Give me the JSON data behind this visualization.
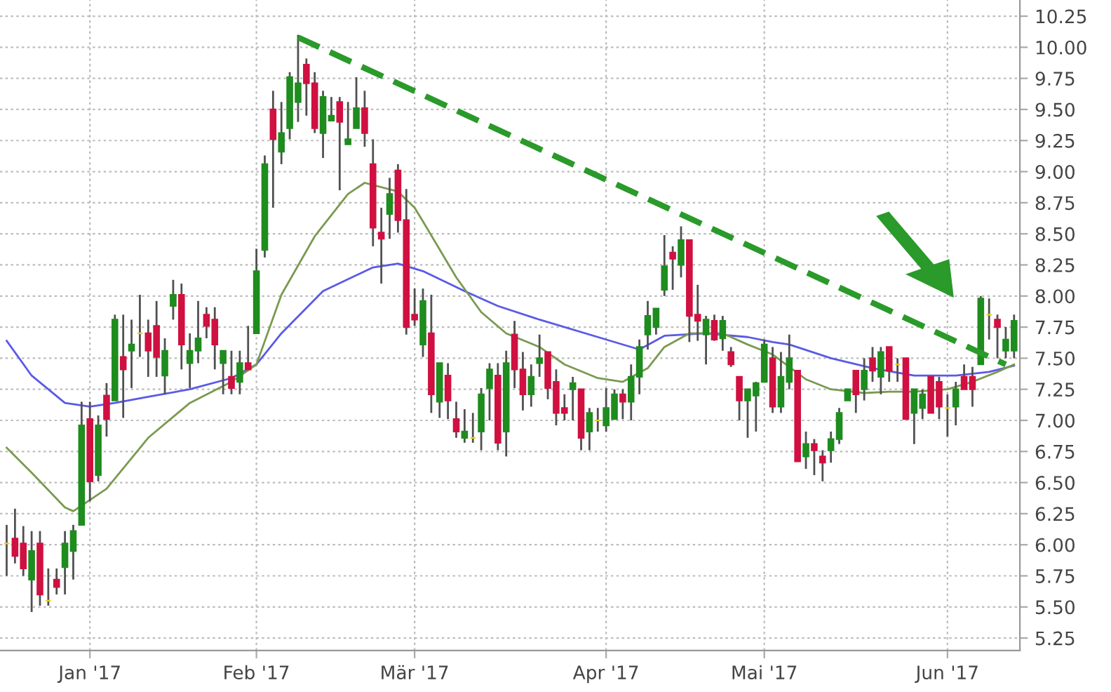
{
  "chart_data": {
    "type": "candlestick",
    "categories": [
      null,
      null,
      null,
      null,
      null,
      null,
      null,
      null,
      null,
      null,
      "Jan '17",
      null,
      null,
      null,
      null,
      null,
      null,
      null,
      null,
      null,
      null,
      null,
      null,
      null,
      null,
      null,
      null,
      null,
      null,
      null,
      "Feb '17",
      null,
      null,
      null,
      null,
      null,
      null,
      null,
      null,
      null,
      null,
      null,
      null,
      null,
      null,
      null,
      null,
      null,
      null,
      "Mär '17",
      null,
      null,
      null,
      null,
      null,
      null,
      null,
      null,
      null,
      null,
      null,
      null,
      null,
      null,
      null,
      null,
      null,
      null,
      null,
      null,
      null,
      null,
      "Apr '17",
      null,
      null,
      null,
      null,
      null,
      null,
      null,
      null,
      null,
      null,
      null,
      null,
      null,
      null,
      null,
      null,
      null,
      null,
      "Mai '17",
      null,
      null,
      null,
      null,
      null,
      null,
      null,
      null,
      null,
      null,
      null,
      null,
      null,
      null,
      null,
      null,
      null,
      null,
      null,
      null,
      null,
      "Jun '17",
      null,
      null,
      null,
      null,
      null,
      null,
      null,
      null
    ],
    "ohlc": [
      [
        6.01,
        6.16,
        5.75,
        6.01
      ],
      [
        6.05,
        6.29,
        5.85,
        5.91
      ],
      [
        6.01,
        6.15,
        5.75,
        5.81
      ],
      [
        5.72,
        6.11,
        5.46,
        5.95
      ],
      [
        6.01,
        6.11,
        5.51,
        5.6
      ],
      [
        5.55,
        5.81,
        5.51,
        5.55
      ],
      [
        5.72,
        5.81,
        5.6,
        5.66
      ],
      [
        5.82,
        6.11,
        5.6,
        6.01
      ],
      [
        5.95,
        6.16,
        5.72,
        6.11
      ],
      [
        6.16,
        7.15,
        6.16,
        6.96
      ],
      [
        7.01,
        7.15,
        6.35,
        6.51
      ],
      [
        6.56,
        7.04,
        6.51,
        6.96
      ],
      [
        7.2,
        7.3,
        6.87,
        7.01
      ],
      [
        7.16,
        7.85,
        7.16,
        7.81
      ],
      [
        7.51,
        7.85,
        7.02,
        7.41
      ],
      [
        7.56,
        7.81,
        7.26,
        7.61
      ],
      [
        7.7,
        8.01,
        7.51,
        7.7
      ],
      [
        7.7,
        7.81,
        7.35,
        7.56
      ],
      [
        7.76,
        7.96,
        7.35,
        7.51
      ],
      [
        7.36,
        7.66,
        7.21,
        7.56
      ],
      [
        7.92,
        8.13,
        7.81,
        8.01
      ],
      [
        8.01,
        8.1,
        7.41,
        7.61
      ],
      [
        7.46,
        7.7,
        7.26,
        7.56
      ],
      [
        7.56,
        7.96,
        7.46,
        7.66
      ],
      [
        7.85,
        7.91,
        7.66,
        7.76
      ],
      [
        7.81,
        7.91,
        7.41,
        7.61
      ],
      [
        7.46,
        7.56,
        7.21,
        7.56
      ],
      [
        7.35,
        7.56,
        7.21,
        7.26
      ],
      [
        7.31,
        7.56,
        7.21,
        7.46
      ],
      [
        7.46,
        7.76,
        7.41,
        7.41
      ],
      [
        7.7,
        8.38,
        7.7,
        8.2
      ],
      [
        8.37,
        9.13,
        8.31,
        9.06
      ],
      [
        9.5,
        9.65,
        8.71,
        9.26
      ],
      [
        9.16,
        9.56,
        9.06,
        9.31
      ],
      [
        9.35,
        9.8,
        9.26,
        9.76
      ],
      [
        9.56,
        10.1,
        9.4,
        9.71
      ],
      [
        9.86,
        9.91,
        9.45,
        9.71
      ],
      [
        9.71,
        9.8,
        9.31,
        9.35
      ],
      [
        9.31,
        9.65,
        9.11,
        9.6
      ],
      [
        9.41,
        9.6,
        9.41,
        9.45
      ],
      [
        9.56,
        9.6,
        8.85,
        9.4
      ],
      [
        9.22,
        9.56,
        9.22,
        9.26
      ],
      [
        9.35,
        9.76,
        9.35,
        9.51
      ],
      [
        9.51,
        9.65,
        9.2,
        9.31
      ],
      [
        9.06,
        9.26,
        8.4,
        8.55
      ],
      [
        8.51,
        8.71,
        8.1,
        8.46
      ],
      [
        8.66,
        8.95,
        8.46,
        8.82
      ],
      [
        9.01,
        9.06,
        8.51,
        8.61
      ],
      [
        8.61,
        8.86,
        7.69,
        7.75
      ],
      [
        7.85,
        8.06,
        7.76,
        7.81
      ],
      [
        7.61,
        8.06,
        7.51,
        7.96
      ],
      [
        7.7,
        8.01,
        7.06,
        7.21
      ],
      [
        7.15,
        7.46,
        7.02,
        7.46
      ],
      [
        7.36,
        7.46,
        7.01,
        7.16
      ],
      [
        7.01,
        7.15,
        6.86,
        6.91
      ],
      [
        6.86,
        7.09,
        6.82,
        6.91
      ],
      [
        6.86,
        7.06,
        6.82,
        6.86
      ],
      [
        6.91,
        7.26,
        6.76,
        7.21
      ],
      [
        7.26,
        7.46,
        7.0,
        7.41
      ],
      [
        7.36,
        7.46,
        6.76,
        6.82
      ],
      [
        6.91,
        7.56,
        6.71,
        7.46
      ],
      [
        7.69,
        7.8,
        7.26,
        7.41
      ],
      [
        7.41,
        7.55,
        7.08,
        7.21
      ],
      [
        7.21,
        7.45,
        7.11,
        7.35
      ],
      [
        7.46,
        7.69,
        7.35,
        7.5
      ],
      [
        7.55,
        7.55,
        7.17,
        7.26
      ],
      [
        7.31,
        7.41,
        6.96,
        7.06
      ],
      [
        7.1,
        7.21,
        7.0,
        7.06
      ],
      [
        7.25,
        7.35,
        7.0,
        7.3
      ],
      [
        7.25,
        7.25,
        6.76,
        6.86
      ],
      [
        6.91,
        7.1,
        6.76,
        7.06
      ],
      [
        7.0,
        7.1,
        6.91,
        7.0
      ],
      [
        6.96,
        7.26,
        6.91,
        7.1
      ],
      [
        7.01,
        7.25,
        7.01,
        7.21
      ],
      [
        7.21,
        7.25,
        7.01,
        7.15
      ],
      [
        7.15,
        7.45,
        7.0,
        7.35
      ],
      [
        7.35,
        7.65,
        7.21,
        7.59
      ],
      [
        7.69,
        7.96,
        7.57,
        7.84
      ],
      [
        7.75,
        7.9,
        7.69,
        7.9
      ],
      [
        8.05,
        8.49,
        8.0,
        8.24
      ],
      [
        8.35,
        8.4,
        8.05,
        8.3
      ],
      [
        8.25,
        8.56,
        8.15,
        8.45
      ],
      [
        8.45,
        8.45,
        7.63,
        7.84
      ],
      [
        7.85,
        8.09,
        7.64,
        7.8
      ],
      [
        7.69,
        7.84,
        7.45,
        7.81
      ],
      [
        7.8,
        7.85,
        7.64,
        7.65
      ],
      [
        7.66,
        7.84,
        7.56,
        7.8
      ],
      [
        7.55,
        7.59,
        7.43,
        7.45
      ],
      [
        7.35,
        7.35,
        7.0,
        7.16
      ],
      [
        7.16,
        7.25,
        6.86,
        7.25
      ],
      [
        7.2,
        7.31,
        6.91,
        7.3
      ],
      [
        7.31,
        7.65,
        7.31,
        7.61
      ],
      [
        7.5,
        7.59,
        7.06,
        7.11
      ],
      [
        7.11,
        7.55,
        7.06,
        7.35
      ],
      [
        7.31,
        7.69,
        7.25,
        7.5
      ],
      [
        7.4,
        7.4,
        6.67,
        6.67
      ],
      [
        6.71,
        6.91,
        6.61,
        6.81
      ],
      [
        6.81,
        6.85,
        6.56,
        6.76
      ],
      [
        6.71,
        6.76,
        6.51,
        6.66
      ],
      [
        6.76,
        6.91,
        6.66,
        6.85
      ],
      [
        6.85,
        7.1,
        6.81,
        7.06
      ],
      [
        7.16,
        7.25,
        7.16,
        7.25
      ],
      [
        7.4,
        7.4,
        7.06,
        7.21
      ],
      [
        7.25,
        7.5,
        7.16,
        7.4
      ],
      [
        7.5,
        7.59,
        7.31,
        7.4
      ],
      [
        7.35,
        7.59,
        7.21,
        7.55
      ],
      [
        7.59,
        7.59,
        7.31,
        7.4
      ],
      [
        7.45,
        7.5,
        7.31,
        7.45
      ],
      [
        7.5,
        7.5,
        7.01,
        7.01
      ],
      [
        7.06,
        7.25,
        6.81,
        7.25
      ],
      [
        7.1,
        7.25,
        7.01,
        7.21
      ],
      [
        7.35,
        7.35,
        7.06,
        7.06
      ],
      [
        7.31,
        7.35,
        7.01,
        7.11
      ],
      [
        7.1,
        7.21,
        6.87,
        7.1
      ],
      [
        7.11,
        7.31,
        6.96,
        7.25
      ],
      [
        7.35,
        7.45,
        7.25,
        7.25
      ],
      [
        7.35,
        7.43,
        7.11,
        7.25
      ],
      [
        7.45,
        8.0,
        7.45,
        7.98
      ],
      [
        7.85,
        7.98,
        7.65,
        7.85
      ],
      [
        7.81,
        7.85,
        7.5,
        7.75
      ],
      [
        7.56,
        7.75,
        7.5,
        7.65
      ],
      [
        7.56,
        7.85,
        7.5,
        7.8
      ]
    ],
    "colors": [
      "#e6d21e",
      "#d01040",
      "#d01040",
      "#1e8c1e",
      "#d01040",
      "#e6d21e",
      "#d01040",
      "#1e8c1e",
      "#1e8c1e",
      "#1e8c1e",
      "#d01040",
      "#1e8c1e",
      "#d01040",
      "#1e8c1e",
      "#d01040",
      "#1e8c1e",
      "#e6d21e",
      "#d01040",
      "#d01040",
      "#1e8c1e",
      "#1e8c1e",
      "#d01040",
      "#1e8c1e",
      "#1e8c1e",
      "#d01040",
      "#d01040",
      "#1e8c1e",
      "#d01040",
      "#1e8c1e",
      "#d01040",
      "#1e8c1e",
      "#1e8c1e",
      "#d01040",
      "#1e8c1e",
      "#1e8c1e",
      "#1e8c1e",
      "#d01040",
      "#d01040",
      "#1e8c1e",
      "#1e8c1e",
      "#d01040",
      "#1e8c1e",
      "#1e8c1e",
      "#d01040",
      "#d01040",
      "#d01040",
      "#1e8c1e",
      "#d01040",
      "#d01040",
      "#d01040",
      "#1e8c1e",
      "#d01040",
      "#1e8c1e",
      "#d01040",
      "#d01040",
      "#1e8c1e",
      "#e6d21e",
      "#1e8c1e",
      "#1e8c1e",
      "#d01040",
      "#1e8c1e",
      "#d01040",
      "#d01040",
      "#1e8c1e",
      "#1e8c1e",
      "#d01040",
      "#d01040",
      "#d01040",
      "#1e8c1e",
      "#d01040",
      "#1e8c1e",
      "#e6d21e",
      "#1e8c1e",
      "#1e8c1e",
      "#d01040",
      "#1e8c1e",
      "#1e8c1e",
      "#1e8c1e",
      "#1e8c1e",
      "#1e8c1e",
      "#d01040",
      "#1e8c1e",
      "#d01040",
      "#d01040",
      "#1e8c1e",
      "#d01040",
      "#1e8c1e",
      "#d01040",
      "#d01040",
      "#1e8c1e",
      "#1e8c1e",
      "#1e8c1e",
      "#d01040",
      "#1e8c1e",
      "#1e8c1e",
      "#d01040",
      "#1e8c1e",
      "#d01040",
      "#d01040",
      "#1e8c1e",
      "#1e8c1e",
      "#1e8c1e",
      "#d01040",
      "#1e8c1e",
      "#d01040",
      "#1e8c1e",
      "#d01040",
      "#e6d21e",
      "#d01040",
      "#1e8c1e",
      "#1e8c1e",
      "#d01040",
      "#d01040",
      "#e6d21e",
      "#1e8c1e",
      "#d01040",
      "#d01040",
      "#1e8c1e",
      "#e6d21e",
      "#d01040",
      "#1e8c1e",
      "#1e8c1e"
    ],
    "series": [
      {
        "type": "line",
        "color": "#5a5ae6",
        "line_style": "solid",
        "values": [
          7.64,
          null,
          null,
          7.36,
          null,
          null,
          null,
          7.14,
          null,
          null,
          7.11,
          null,
          null,
          7.14,
          null,
          null,
          null,
          7.19,
          null,
          null,
          null,
          null,
          7.25,
          null,
          null,
          null,
          null,
          7.34,
          null,
          null,
          7.45,
          null,
          null,
          7.7,
          null,
          null,
          null,
          null,
          8.04,
          null,
          null,
          null,
          null,
          null,
          8.23,
          null,
          null,
          8.26,
          null,
          null,
          8.2,
          null,
          null,
          null,
          null,
          8.04,
          null,
          null,
          null,
          7.92,
          null,
          null,
          null,
          null,
          7.81,
          null,
          null,
          null,
          null,
          null,
          null,
          7.67,
          null,
          null,
          null,
          null,
          7.57,
          null,
          null,
          7.68,
          null,
          null,
          null,
          null,
          7.7,
          null,
          null,
          null,
          null,
          7.67,
          null,
          null,
          7.63,
          null,
          7.61,
          null,
          null,
          null,
          null,
          7.5,
          null,
          null,
          null,
          null,
          7.42,
          null,
          null,
          null,
          null,
          7.36,
          null,
          null,
          null,
          null,
          7.36,
          null,
          null,
          null,
          7.39,
          null,
          null,
          7.44
        ]
      },
      {
        "type": "line",
        "color": "#7a9a50",
        "line_style": "solid",
        "values": [
          6.78,
          null,
          null,
          6.58,
          null,
          null,
          null,
          6.3,
          6.27,
          null,
          null,
          null,
          6.45,
          null,
          null,
          null,
          null,
          6.86,
          null,
          null,
          null,
          null,
          7.14,
          null,
          null,
          null,
          null,
          7.31,
          null,
          null,
          7.45,
          null,
          null,
          8.01,
          null,
          null,
          null,
          8.48,
          null,
          null,
          null,
          8.82,
          null,
          8.91,
          null,
          null,
          null,
          8.84,
          null,
          8.71,
          8.6,
          null,
          null,
          null,
          8.15,
          null,
          null,
          7.87,
          null,
          null,
          7.7,
          null,
          null,
          null,
          7.59,
          null,
          null,
          7.45,
          null,
          null,
          null,
          7.34,
          null,
          null,
          7.31,
          null,
          null,
          7.42,
          null,
          7.59,
          null,
          null,
          7.7,
          null,
          null,
          null,
          7.7,
          null,
          null,
          7.61,
          null,
          null,
          7.53,
          null,
          null,
          null,
          7.33,
          null,
          null,
          7.25,
          null,
          null,
          null,
          7.22,
          null,
          null,
          7.23,
          null,
          null,
          7.23,
          null,
          null,
          null,
          7.25,
          null,
          null,
          7.31,
          null,
          null,
          7.39,
          null,
          7.45
        ]
      },
      {
        "type": "line",
        "color": "#2a9a2a",
        "line_style": "dashed",
        "values": [
          null,
          null,
          null,
          null,
          null,
          null,
          null,
          null,
          null,
          null,
          null,
          null,
          null,
          null,
          null,
          null,
          null,
          null,
          null,
          null,
          null,
          null,
          null,
          null,
          null,
          null,
          null,
          null,
          null,
          null,
          null,
          null,
          null,
          null,
          null,
          10.08,
          null,
          null,
          null,
          null,
          null,
          null,
          null,
          null,
          null,
          null,
          null,
          null,
          null,
          null,
          null,
          null,
          null,
          null,
          null,
          null,
          null,
          null,
          null,
          null,
          null,
          null,
          null,
          null,
          null,
          null,
          null,
          null,
          null,
          null,
          null,
          null,
          null,
          null,
          null,
          null,
          null,
          null,
          null,
          null,
          null,
          null,
          null,
          null,
          null,
          null,
          null,
          null,
          null,
          null,
          null,
          null,
          null,
          null,
          null,
          null,
          null,
          null,
          null,
          null,
          null,
          null,
          null,
          null,
          null,
          null,
          null,
          null,
          null,
          null,
          null,
          null,
          null,
          null,
          null,
          null,
          null,
          null,
          null,
          null,
          7.45,
          null
        ]
      }
    ],
    "ylim": [
      5.15,
      10.38
    ],
    "yticks": [
      {
        "value": 5.25,
        "label": "5.25"
      },
      {
        "value": 5.5,
        "label": "5.50"
      },
      {
        "value": 5.75,
        "label": "5.75"
      },
      {
        "value": 6.0,
        "label": "6.00"
      },
      {
        "value": 6.25,
        "label": "6.25"
      },
      {
        "value": 6.5,
        "label": "6.50"
      },
      {
        "value": 6.75,
        "label": "6.75"
      },
      {
        "value": 7.0,
        "label": "7.00"
      },
      {
        "value": 7.25,
        "label": "7.25"
      },
      {
        "value": 7.5,
        "label": "7.50"
      },
      {
        "value": 7.75,
        "label": "7.75"
      },
      {
        "value": 8.0,
        "label": "8.00"
      },
      {
        "value": 8.25,
        "label": "8.25"
      },
      {
        "value": 8.5,
        "label": "8.50"
      },
      {
        "value": 8.75,
        "label": "8.75"
      },
      {
        "value": 9.0,
        "label": "9.00"
      },
      {
        "value": 9.25,
        "label": "9.25"
      },
      {
        "value": 9.5,
        "label": "9.50"
      },
      {
        "value": 9.75,
        "label": "9.75"
      },
      {
        "value": 10.0,
        "label": "10.00"
      },
      {
        "value": 10.25,
        "label": "10.25"
      }
    ],
    "grid": true
  }
}
